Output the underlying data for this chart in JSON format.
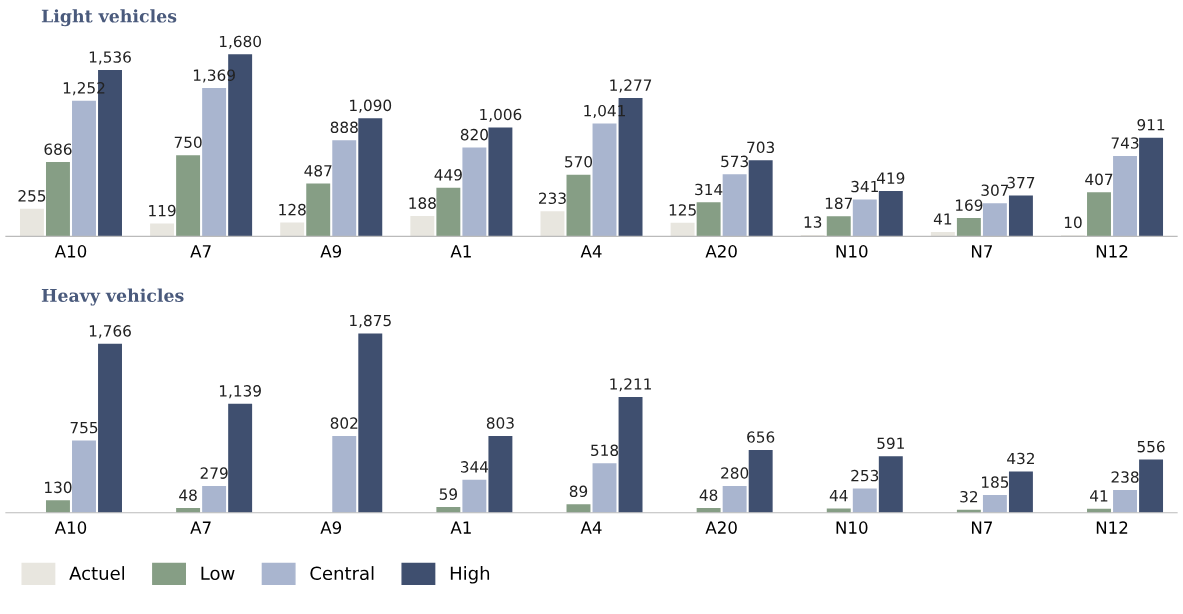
{
  "chart_data": [
    {
      "type": "bar",
      "title": "Light vehicles",
      "categories": [
        "A10",
        "A7",
        "A9",
        "A1",
        "A4",
        "A20",
        "N10",
        "N7",
        "N12"
      ],
      "grid": false,
      "series": [
        {
          "color": "#e8e6df",
          "values": [
            255,
            119,
            128,
            188,
            233,
            125,
            13,
            41,
            10
          ],
          "value_labels": [
            "255",
            "119",
            "128",
            "188",
            "233",
            "125",
            "13",
            "41",
            "10"
          ]
        },
        {
          "color": "#869e85",
          "values": [
            686,
            750,
            487,
            449,
            570,
            314,
            187,
            169,
            407
          ],
          "value_labels": [
            "686",
            "750",
            "487",
            "449",
            "570",
            "314",
            "187",
            "169",
            "407"
          ]
        },
        {
          "color": "#a9b5cf",
          "values": [
            1252,
            1369,
            888,
            820,
            1041,
            573,
            341,
            307,
            743
          ],
          "value_labels": [
            "1,252",
            "1,369",
            "888",
            "820",
            "1,041",
            "573",
            "341",
            "307",
            "743"
          ]
        },
        {
          "color": "#3f4f6f",
          "values": [
            1536,
            1680,
            1090,
            1006,
            1277,
            703,
            419,
            377,
            911
          ],
          "value_labels": [
            "1,536",
            "1,680",
            "1,090",
            "1,006",
            "1,277",
            "703",
            "419",
            "377",
            "911"
          ]
        }
      ]
    },
    {
      "type": "bar",
      "title": "Heavy vehicles",
      "categories": [
        "A10",
        "A7",
        "A9",
        "A1",
        "A4",
        "A20",
        "N10",
        "N7",
        "N12"
      ],
      "legend": "bottom",
      "grid": false,
      "series": [
        {
          "name": "Actuel",
          "color": "#e8e6df",
          "values": [
            null,
            null,
            null,
            null,
            null,
            null,
            null,
            null,
            null
          ]
        },
        {
          "name": "Low",
          "color": "#869e85",
          "values": [
            130,
            48,
            null,
            59,
            89,
            48,
            44,
            32,
            41
          ],
          "value_labels": [
            "130",
            "48",
            null,
            "59",
            "89",
            "48",
            "44",
            "32",
            "41"
          ]
        },
        {
          "name": "Central",
          "color": "#a9b5cf",
          "values": [
            755,
            279,
            802,
            344,
            518,
            280,
            253,
            185,
            238
          ],
          "value_labels": [
            "755",
            "279",
            "802",
            "344",
            "518",
            "280",
            "253",
            "185",
            "238"
          ]
        },
        {
          "name": "High",
          "color": "#3f4f6f",
          "values": [
            1766,
            1139,
            1875,
            803,
            1211,
            656,
            591,
            432,
            556
          ],
          "value_labels": [
            "1,766",
            "1,139",
            "1,875",
            "803",
            "1,211",
            "656",
            "591",
            "432",
            "556"
          ]
        }
      ]
    }
  ]
}
